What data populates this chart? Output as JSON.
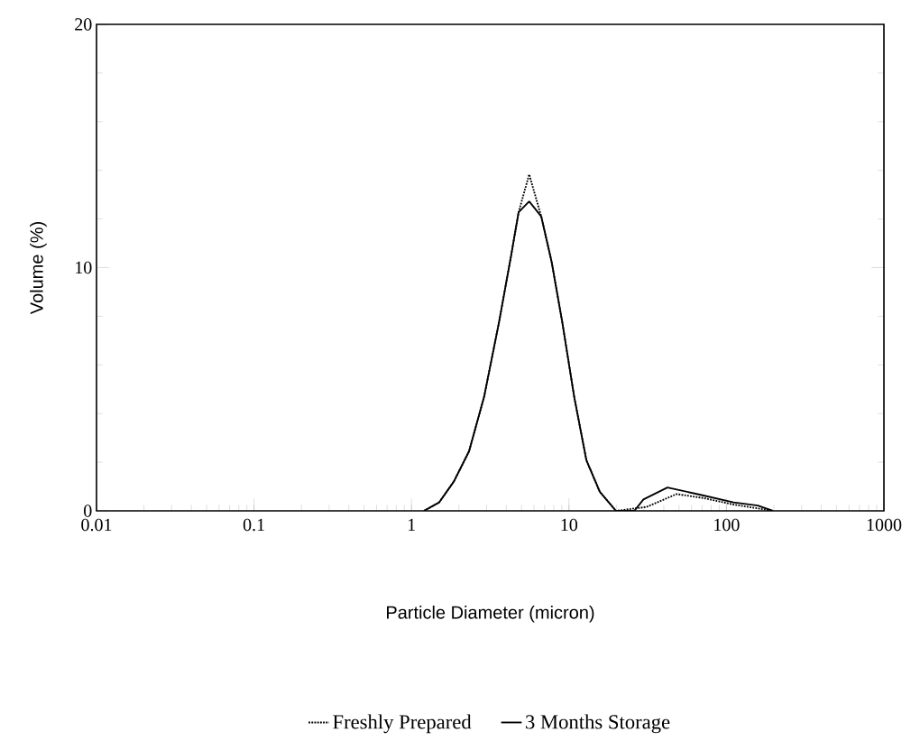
{
  "chart_data": {
    "type": "line",
    "xlabel": "Particle Diameter (micron)",
    "ylabel": "Volume (%)",
    "log": "x",
    "xlim": [
      0.01,
      1000
    ],
    "xticks": [
      0.01,
      0.1,
      1,
      10,
      100,
      1000
    ],
    "ylim": [
      0,
      20
    ],
    "yticks": [
      0,
      10,
      20
    ],
    "grid": false,
    "legend": "bottom",
    "marker": "none",
    "series": [
      {
        "name": "Freshly Prepared",
        "color": "#000000",
        "line_style": "dotted",
        "x": [
          1.2,
          1.5,
          1.86,
          2.32,
          2.89,
          3.6,
          4.29,
          4.79,
          5.59,
          6.67,
          7.76,
          9.06,
          10.8,
          12.9,
          15.7,
          19.9,
          31,
          48.2,
          71,
          111,
          158,
          197
        ],
        "values": [
          0,
          0.35,
          1.21,
          2.45,
          4.68,
          7.77,
          10.49,
          12.28,
          13.83,
          12.1,
          10.24,
          7.77,
          4.68,
          2.08,
          0.78,
          0,
          0.16,
          0.69,
          0.53,
          0.26,
          0.1,
          0
        ]
      },
      {
        "name": "3 Months Storage",
        "color": "#000000",
        "line_style": "solid",
        "x": [
          1.2,
          1.5,
          1.86,
          2.32,
          2.89,
          3.6,
          4.29,
          4.79,
          5.59,
          6.67,
          7.76,
          9.06,
          10.8,
          12.9,
          15.7,
          19.9,
          26,
          29.7,
          42.2,
          68.5,
          111,
          158,
          197
        ],
        "values": [
          0,
          0.35,
          1.21,
          2.45,
          4.68,
          7.77,
          10.49,
          12.28,
          12.72,
          12.1,
          10.24,
          7.77,
          4.68,
          2.08,
          0.78,
          0,
          0,
          0.47,
          0.96,
          0.66,
          0.35,
          0.22,
          0
        ]
      }
    ]
  }
}
